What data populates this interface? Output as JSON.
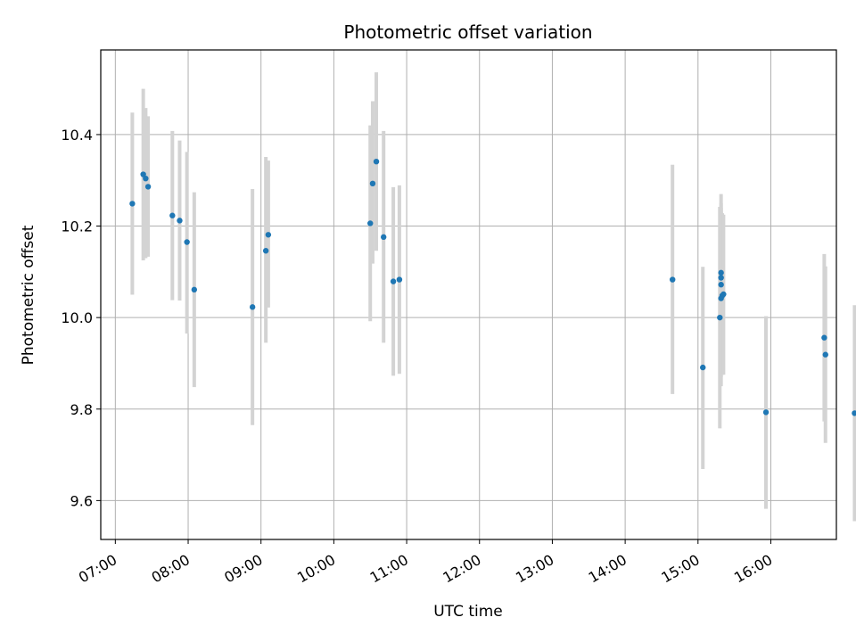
{
  "chart_data": {
    "type": "scatter",
    "title": "Photometric offset variation",
    "xlabel": "UTC time",
    "ylabel": "Photometric offset",
    "x_ticks": [
      "07:00",
      "08:00",
      "09:00",
      "10:00",
      "11:00",
      "12:00",
      "13:00",
      "14:00",
      "15:00",
      "16:00"
    ],
    "y_ticks": [
      "9.6",
      "9.8",
      "10.0",
      "10.2",
      "10.4"
    ],
    "xlim": [
      "06:48",
      "16:54"
    ],
    "ylim": [
      9.515,
      10.585
    ],
    "grid": true,
    "marker_color": "#1f77b4",
    "errorbar_color": "#d3d3d3",
    "points": [
      {
        "x": "07:14",
        "y": 10.249,
        "ylow": 10.05,
        "yhigh": 10.448
      },
      {
        "x": "07:23",
        "y": 10.313,
        "ylow": 10.125,
        "yhigh": 10.5
      },
      {
        "x": "07:25",
        "y": 10.304,
        "ylow": 10.13,
        "yhigh": 10.458
      },
      {
        "x": "07:27",
        "y": 10.286,
        "ylow": 10.133,
        "yhigh": 10.44
      },
      {
        "x": "07:47",
        "y": 10.223,
        "ylow": 10.038,
        "yhigh": 10.408
      },
      {
        "x": "07:53",
        "y": 10.212,
        "ylow": 10.037,
        "yhigh": 10.387
      },
      {
        "x": "07:59",
        "y": 10.165,
        "ylow": 9.965,
        "yhigh": 10.362
      },
      {
        "x": "08:05",
        "y": 10.061,
        "ylow": 9.848,
        "yhigh": 10.274
      },
      {
        "x": "08:53",
        "y": 10.023,
        "ylow": 9.765,
        "yhigh": 10.281
      },
      {
        "x": "09:04",
        "y": 10.146,
        "ylow": 9.945,
        "yhigh": 10.351
      },
      {
        "x": "09:06",
        "y": 10.181,
        "ylow": 10.022,
        "yhigh": 10.343
      },
      {
        "x": "10:30",
        "y": 10.206,
        "ylow": 9.992,
        "yhigh": 10.42
      },
      {
        "x": "10:32",
        "y": 10.293,
        "ylow": 10.118,
        "yhigh": 10.473
      },
      {
        "x": "10:35",
        "y": 10.341,
        "ylow": 10.146,
        "yhigh": 10.536
      },
      {
        "x": "10:41",
        "y": 10.176,
        "ylow": 9.945,
        "yhigh": 10.408
      },
      {
        "x": "10:49",
        "y": 10.079,
        "ylow": 9.873,
        "yhigh": 10.285
      },
      {
        "x": "10:54",
        "y": 10.083,
        "ylow": 9.877,
        "yhigh": 10.289
      },
      {
        "x": "14:39",
        "y": 10.083,
        "ylow": 9.833,
        "yhigh": 10.334
      },
      {
        "x": "15:04",
        "y": 9.891,
        "ylow": 9.669,
        "yhigh": 10.111
      },
      {
        "x": "15:18",
        "y": 10.0,
        "ylow": 9.758,
        "yhigh": 10.242
      },
      {
        "x": "15:19",
        "y": 10.042,
        "ylow": 9.85,
        "yhigh": 10.24
      },
      {
        "x": "15:19",
        "y": 10.072,
        "ylow": 9.87,
        "yhigh": 10.27
      },
      {
        "x": "15:19",
        "y": 10.087,
        "ylow": 9.88,
        "yhigh": 10.25
      },
      {
        "x": "15:19",
        "y": 10.098,
        "ylow": 9.9,
        "yhigh": 10.23
      },
      {
        "x": "15:20",
        "y": 10.048,
        "ylow": 9.875,
        "yhigh": 10.228
      },
      {
        "x": "15:21",
        "y": 10.051,
        "ylow": 9.875,
        "yhigh": 10.225
      },
      {
        "x": "15:56",
        "y": 9.793,
        "ylow": 9.582,
        "yhigh": 10.003
      },
      {
        "x": "16:44",
        "y": 9.956,
        "ylow": 9.773,
        "yhigh": 10.139
      },
      {
        "x": "16:45",
        "y": 9.919,
        "ylow": 9.726,
        "yhigh": 10.112
      },
      {
        "x": "17:09",
        "y": 9.791,
        "ylow": 9.555,
        "yhigh": 10.027
      }
    ]
  }
}
